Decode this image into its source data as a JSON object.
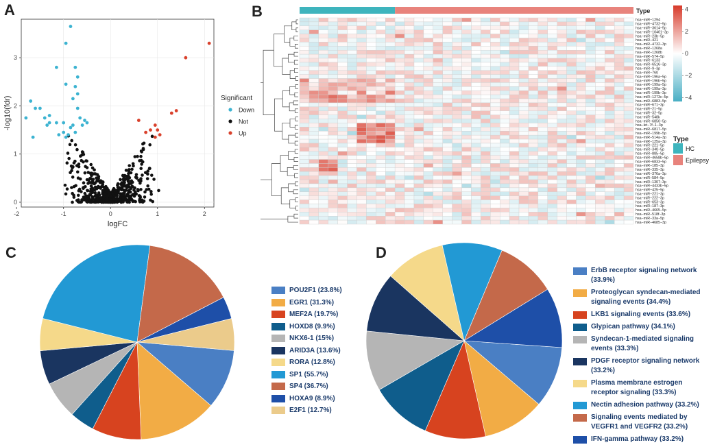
{
  "panels": {
    "a": "A",
    "b": "B",
    "c": "C",
    "d": "D"
  },
  "chart_data": [
    {
      "type": "scatter",
      "panel": "A",
      "title": "",
      "xlabel": "logFC",
      "ylabel": "-log10(fdr)",
      "xlim": [
        -1.9,
        2.2
      ],
      "ylim": [
        -0.1,
        3.8
      ],
      "xticks": [
        "-2",
        "-1",
        "0",
        "1",
        "2"
      ],
      "yticks": [
        "0",
        "1",
        "2",
        "3"
      ],
      "legend_title": "Significant",
      "legend": [
        {
          "name": "Down",
          "color": "#3cb3d1"
        },
        {
          "name": "Not",
          "color": "#111111"
        },
        {
          "name": "Up",
          "color": "#d9412c"
        }
      ],
      "series": [
        {
          "name": "Down",
          "color": "#3cb3d1",
          "points": [
            [
              -0.85,
              3.65
            ],
            [
              -0.95,
              3.3
            ],
            [
              -1.15,
              2.8
            ],
            [
              -0.75,
              2.8
            ],
            [
              -0.7,
              2.6
            ],
            [
              -0.95,
              2.45
            ],
            [
              -0.75,
              2.4
            ],
            [
              -0.7,
              2.25
            ],
            [
              -0.8,
              2.15
            ],
            [
              -1.7,
              2.1
            ],
            [
              -1.6,
              1.95
            ],
            [
              -1.5,
              1.95
            ],
            [
              -1.8,
              1.75
            ],
            [
              -0.7,
              1.95
            ],
            [
              -1.3,
              1.8
            ],
            [
              -1.4,
              1.75
            ],
            [
              -0.65,
              1.75
            ],
            [
              -1.3,
              1.65
            ],
            [
              -0.55,
              1.7
            ],
            [
              -0.5,
              1.65
            ],
            [
              -1.0,
              1.65
            ],
            [
              -0.8,
              1.6
            ],
            [
              -0.85,
              1.55
            ],
            [
              -1.15,
              1.65
            ],
            [
              -1.35,
              1.6
            ],
            [
              -0.6,
              1.6
            ],
            [
              -1.65,
              1.35
            ],
            [
              -1.1,
              1.4
            ],
            [
              -1.0,
              1.45
            ],
            [
              -0.95,
              1.35
            ],
            [
              -0.9,
              1.4
            ],
            [
              -0.75,
              1.45
            ]
          ]
        },
        {
          "name": "Up",
          "color": "#d9412c",
          "points": [
            [
              2.1,
              3.3
            ],
            [
              1.6,
              3.0
            ],
            [
              1.4,
              1.9
            ],
            [
              1.3,
              1.85
            ],
            [
              0.6,
              1.7
            ],
            [
              0.95,
              1.6
            ],
            [
              0.85,
              1.5
            ],
            [
              1.0,
              1.5
            ],
            [
              1.05,
              1.4
            ],
            [
              0.95,
              1.35
            ],
            [
              0.75,
              1.45
            ]
          ]
        },
        {
          "name": "Not",
          "color": "#111111",
          "summary": "approximately 600 non-significant miRNAs forming a V-shaped cloud between logFC -1 and 1 and -log10(fdr) 0 to 1.7"
        }
      ]
    },
    {
      "type": "heatmap",
      "panel": "B",
      "title": "",
      "annotation_title": "Type",
      "groups": [
        {
          "name": "HC",
          "color": "#3eb4bd",
          "count": 10
        },
        {
          "name": "Epilepsy",
          "color": "#e8837c",
          "count": 25
        }
      ],
      "color_scale": {
        "min": -4,
        "max": 4,
        "low": "#48aec4",
        "mid": "#ffffff",
        "high": "#d73a2a",
        "ticks": [
          "4",
          "2",
          "0",
          "−2",
          "−4"
        ]
      },
      "rows": [
        "hsa−miR−1294",
        "hsa−miR−4732−5p",
        "hsa−miR−3614−5p",
        "hsa−miR−10401−3p",
        "hsa−miR−23b−5p",
        "hsa−miR−421",
        "hsa−miR−4732−3p",
        "hsa−miR−1268a",
        "hsa−miR−1268b",
        "hsa−miR−574−5p",
        "hsa−miR−6133",
        "hsa−miR−6516−3p",
        "hsa−miR−9−3p",
        "hsa−miR−760",
        "hsa−miR−196a−5p",
        "hsa−miR−196b−5p",
        "hsa−miR−199a−5p",
        "hsa−miR−199a−3p",
        "hsa−miR−199b−3p",
        "hsa−miR−1273c−5p",
        "hsa−miR−6883−5p",
        "hsa−miR−671−3p",
        "hsa−miR−21−5p",
        "hsa−miR−32−5p",
        "hsa−miR−548k",
        "hsa−miR−6850−5p",
        "hsa−let−7f−1−3p",
        "hsa−miR−6817−5p",
        "hsa−miR−199b−5p",
        "hsa−miR−514a−3p",
        "hsa−miR−125a−3p",
        "hsa−miR−221−5p",
        "hsa−miR−340−5p",
        "hsa−miR−885−5p",
        "hsa−miR−4658b−5p",
        "hsa−miR−6833−5p",
        "hsa−miR−185−3p",
        "hsa−miR−335−3p",
        "hsa−miR−376a−3p",
        "hsa−miR−584−5p",
        "hsa−miR−1307−3p",
        "hsa−miR−4433b−5p",
        "hsa−miR−425−5p",
        "hsa−miR−221−3p",
        "hsa−miR−222−3p",
        "hsa−miR−653−3p",
        "hsa−miR−187−3p",
        "hsa−miR−4665−5p",
        "hsa−miR−518f−3p",
        "hsa−miR−33a−5p",
        "hsa−miR−4685−3p"
      ],
      "columns": 35
    },
    {
      "type": "pie",
      "panel": "C",
      "title": "",
      "slices": [
        {
          "name": "POU2F1",
          "value": 23.8,
          "label": "POU2F1 (23.8%)",
          "color": "#4a7fc4"
        },
        {
          "name": "EGR1",
          "value": 31.3,
          "label": "EGR1 (31.3%)",
          "color": "#f2ac45"
        },
        {
          "name": "MEF2A",
          "value": 19.7,
          "label": "MEF2A (19.7%)",
          "color": "#d7431f"
        },
        {
          "name": "HOXD8",
          "value": 9.9,
          "label": "HOXD8 (9.9%)",
          "color": "#0f5d8c"
        },
        {
          "name": "NKX6-1",
          "value": 15,
          "label": "NKX6-1 (15%)",
          "color": "#b5b5b5"
        },
        {
          "name": "ARID3A",
          "value": 13.6,
          "label": "ARID3A (13.6%)",
          "color": "#1a3560"
        },
        {
          "name": "RORA",
          "value": 12.8,
          "label": "RORA (12.8%)",
          "color": "#f5d98a"
        },
        {
          "name": "SP1",
          "value": 55.7,
          "label": "SP1 (55.7%)",
          "color": "#2299d4"
        },
        {
          "name": "SP4",
          "value": 36.7,
          "label": "SP4 (36.7%)",
          "color": "#c4694a"
        },
        {
          "name": "HOXA9",
          "value": 8.9,
          "label": "HOXA9 (8.9%)",
          "color": "#1e4fa8"
        },
        {
          "name": "E2F1",
          "value": 12.7,
          "label": "E2F1 (12.7%)",
          "color": "#ebcb8b"
        }
      ]
    },
    {
      "type": "pie",
      "panel": "D",
      "title": "",
      "slices": [
        {
          "name": "ErbB receptor signaling network",
          "value": 33.9,
          "label": "ErbB receptor signaling network (33.9%)",
          "color": "#4a7fc4"
        },
        {
          "name": "Proteoglycan syndecan-mediated signaling events",
          "value": 34.4,
          "label": "Proteoglycan syndecan-mediated signaling events (34.4%)",
          "color": "#f2ac45"
        },
        {
          "name": "LKB1 signaling events",
          "value": 33.6,
          "label": "LKB1 signaling events (33.6%)",
          "color": "#d7431f"
        },
        {
          "name": "Glypican pathway",
          "value": 34.1,
          "label": "Glypican pathway (34.1%)",
          "color": "#0f5d8c"
        },
        {
          "name": "Syndecan-1-mediated signaling events",
          "value": 33.3,
          "label": "Syndecan-1-mediated signaling events (33.3%)",
          "color": "#b5b5b5"
        },
        {
          "name": "PDGF receptor signaling network",
          "value": 33.2,
          "label": "PDGF receptor signaling network (33.2%)",
          "color": "#1a3560"
        },
        {
          "name": "Plasma membrane estrogen receptor signaling",
          "value": 33.3,
          "label": "Plasma membrane estrogen receptor signaling (33.3%)",
          "color": "#f5d98a"
        },
        {
          "name": "Nectin adhesion pathway",
          "value": 33.2,
          "label": "Nectin adhesion pathway (33.2%)",
          "color": "#2299d4"
        },
        {
          "name": "Signaling events mediated by VEGFR1 and VEGFR2",
          "value": 33.2,
          "label": "Signaling events mediated by VEGFR1 and VEGFR2 (33.2%)",
          "color": "#c4694a"
        },
        {
          "name": "IFN-gamma pathway",
          "value": 33.2,
          "label": "IFN-gamma pathway (33.2%)",
          "color": "#1e4fa8"
        }
      ]
    }
  ]
}
